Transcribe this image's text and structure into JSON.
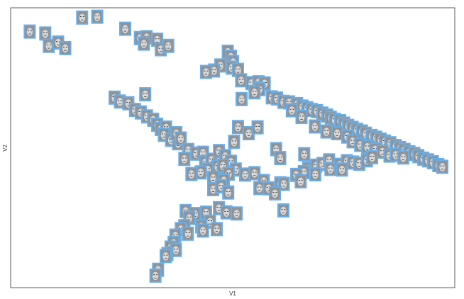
{
  "chart_data": {
    "type": "scatter",
    "title": "",
    "xlabel": "V1",
    "ylabel": "V2",
    "xlim": [
      0,
      100
    ],
    "ylim": [
      0,
      100
    ],
    "grid": false,
    "legend": "none",
    "marker": "face-thumbnail-icon",
    "colors": {
      "frame": "#333333",
      "marker_border": "#6aaee6",
      "face_bg": "#8f9297",
      "face_skin": "#d7d7d7",
      "face_dark": "#3a3a3a"
    },
    "points": [
      [
        4.3,
        91.5
      ],
      [
        7.8,
        90.8
      ],
      [
        8.6,
        86.4
      ],
      [
        10.7,
        87.6
      ],
      [
        12.3,
        85.6
      ],
      [
        16.1,
        96.5
      ],
      [
        19.5,
        96.8
      ],
      [
        25.8,
        92.5
      ],
      [
        29.1,
        89.2
      ],
      [
        30.6,
        89.5
      ],
      [
        30.0,
        87.2
      ],
      [
        33.0,
        88.6
      ],
      [
        33.8,
        85.2
      ],
      [
        35.5,
        86.4
      ],
      [
        48.9,
        84.3
      ],
      [
        49.6,
        82.5
      ],
      [
        50.1,
        80.6
      ],
      [
        49.8,
        78.6
      ],
      [
        47.2,
        79.4
      ],
      [
        45.8,
        77.6
      ],
      [
        44.0,
        77.1
      ],
      [
        51.2,
        77.8
      ],
      [
        51.9,
        74.1
      ],
      [
        54.2,
        73.1
      ],
      [
        55.8,
        73.4
      ],
      [
        57.2,
        73.0
      ],
      [
        56.0,
        70.9
      ],
      [
        54.9,
        69.8
      ],
      [
        58.8,
        68.0
      ],
      [
        60.0,
        67.6
      ],
      [
        61.4,
        66.4
      ],
      [
        62.7,
        66.2
      ],
      [
        64.5,
        65.6
      ],
      [
        65.7,
        64.7
      ],
      [
        66.8,
        64.1
      ],
      [
        67.8,
        63.5
      ],
      [
        69.0,
        63.1
      ],
      [
        70.2,
        62.2
      ],
      [
        71.3,
        61.5
      ],
      [
        72.1,
        60.7
      ],
      [
        73.0,
        60.0
      ],
      [
        74.2,
        59.5
      ],
      [
        75.1,
        58.6
      ],
      [
        76.0,
        57.8
      ],
      [
        77.0,
        57.1
      ],
      [
        78.0,
        56.4
      ],
      [
        79.1,
        55.8
      ],
      [
        80.0,
        55.0
      ],
      [
        81.3,
        54.2
      ],
      [
        82.3,
        53.6
      ],
      [
        83.3,
        52.9
      ],
      [
        84.3,
        52.2
      ],
      [
        85.5,
        51.6
      ],
      [
        86.7,
        50.6
      ],
      [
        87.7,
        49.9
      ],
      [
        88.7,
        49.2
      ],
      [
        89.8,
        48.4
      ],
      [
        90.9,
        47.8
      ],
      [
        91.8,
        47.0
      ],
      [
        92.9,
        46.1
      ],
      [
        94.0,
        45.5
      ],
      [
        95.1,
        44.8
      ],
      [
        96.3,
        43.8
      ],
      [
        97.2,
        43.2
      ],
      [
        63.3,
        63.4
      ],
      [
        65.5,
        61.0
      ],
      [
        68.5,
        57.6
      ],
      [
        71.1,
        55.8
      ],
      [
        73.5,
        55.2
      ],
      [
        75.8,
        54.0
      ],
      [
        77.0,
        52.3
      ],
      [
        78.7,
        51.0
      ],
      [
        80.3,
        50.3
      ],
      [
        82.1,
        49.4
      ],
      [
        83.7,
        48.6
      ],
      [
        85.3,
        47.2
      ],
      [
        86.7,
        47.5
      ],
      [
        88.4,
        46.5
      ],
      [
        52.0,
        67.4
      ],
      [
        51.2,
        57.4
      ],
      [
        53.6,
        55.2
      ],
      [
        55.6,
        57.3
      ],
      [
        50.3,
        52.1
      ],
      [
        59.8,
        49.5
      ],
      [
        60.7,
        46.3
      ],
      [
        66.1,
        47.7
      ],
      [
        67.0,
        42.6
      ],
      [
        68.8,
        43.6
      ],
      [
        70.2,
        44.2
      ],
      [
        71.7,
        45.5
      ],
      [
        72.0,
        42.4
      ],
      [
        74.1,
        43.9
      ],
      [
        75.7,
        45.2
      ],
      [
        74.6,
        42.2
      ],
      [
        77.1,
        44.7
      ],
      [
        78.5,
        44.3
      ],
      [
        80.2,
        45.5
      ],
      [
        81.4,
        46.6
      ],
      [
        66.0,
        41.3
      ],
      [
        64.3,
        40.3
      ],
      [
        65.3,
        38.0
      ],
      [
        68.6,
        40.5
      ],
      [
        23.4,
        67.9
      ],
      [
        30.3,
        69.1
      ],
      [
        24.6,
        66.5
      ],
      [
        26.5,
        65.9
      ],
      [
        28.0,
        63.5
      ],
      [
        29.3,
        62.6
      ],
      [
        30.7,
        61.2
      ],
      [
        32.1,
        60.0
      ],
      [
        33.0,
        58.2
      ],
      [
        33.8,
        56.7
      ],
      [
        35.0,
        57.2
      ],
      [
        34.5,
        54.6
      ],
      [
        36.1,
        52.8
      ],
      [
        37.7,
        51.6
      ],
      [
        37.3,
        55.2
      ],
      [
        38.3,
        53.3
      ],
      [
        40.0,
        49.2
      ],
      [
        41.8,
        47.9
      ],
      [
        39.1,
        46.0
      ],
      [
        43.3,
        48.2
      ],
      [
        43.8,
        44.8
      ],
      [
        45.2,
        45.7
      ],
      [
        46.9,
        48.8
      ],
      [
        48.3,
        47.0
      ],
      [
        49.6,
        45.0
      ],
      [
        46.6,
        43.3
      ],
      [
        47.8,
        43.6
      ],
      [
        44.4,
        42.2
      ],
      [
        45.6,
        39.2
      ],
      [
        42.8,
        41.2
      ],
      [
        40.7,
        40.6
      ],
      [
        50.7,
        42.2
      ],
      [
        52.8,
        40.4
      ],
      [
        49.1,
        40.7
      ],
      [
        48.0,
        38.3
      ],
      [
        45.6,
        35.2
      ],
      [
        47.4,
        36.2
      ],
      [
        49.0,
        34.0
      ],
      [
        54.9,
        40.9
      ],
      [
        57.0,
        38.1
      ],
      [
        56.0,
        35.6
      ],
      [
        58.1,
        35.5
      ],
      [
        60.7,
        37.3
      ],
      [
        61.5,
        37.1
      ],
      [
        59.5,
        33.7
      ],
      [
        61.4,
        27.6
      ],
      [
        39.4,
        27.4
      ],
      [
        41.5,
        26.3
      ],
      [
        40.2,
        24.9
      ],
      [
        44.0,
        26.8
      ],
      [
        46.9,
        28.4
      ],
      [
        48.6,
        26.9
      ],
      [
        50.9,
        26.5
      ],
      [
        44.9,
        23.6
      ],
      [
        42.9,
        21.9
      ],
      [
        39.1,
        22.0
      ],
      [
        38.3,
        20.9
      ],
      [
        39.9,
        19.3
      ],
      [
        43.3,
        20.4
      ],
      [
        46.4,
        20.9
      ],
      [
        37.1,
        18.6
      ],
      [
        36.7,
        16.0
      ],
      [
        36.0,
        14.3
      ],
      [
        37.2,
        13.5
      ],
      [
        35.3,
        12.0
      ],
      [
        34.9,
        11.3
      ],
      [
        33.2,
        6.4
      ],
      [
        32.6,
        4.3
      ]
    ]
  }
}
